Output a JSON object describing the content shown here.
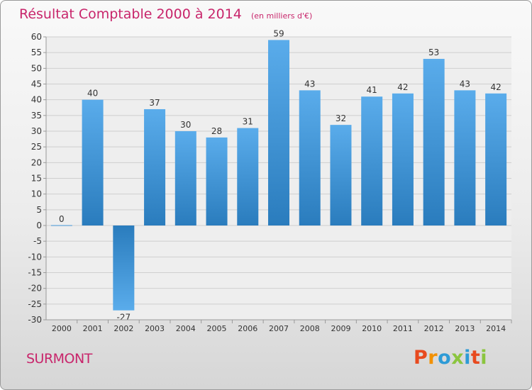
{
  "header": {
    "title": "Résultat Comptable 2000 à 2014",
    "subtitle": "(en milliers d'€)"
  },
  "footer": {
    "commune": "SURMONT",
    "logo": "Proxiti"
  },
  "chart_data": {
    "type": "bar",
    "title": "Résultat Comptable 2000 à 2014",
    "subtitle": "(en milliers d'€)",
    "xlabel": "",
    "ylabel": "",
    "categories": [
      "2000",
      "2001",
      "2002",
      "2003",
      "2004",
      "2005",
      "2006",
      "2007",
      "2008",
      "2009",
      "2010",
      "2011",
      "2012",
      "2013",
      "2014"
    ],
    "values": [
      0,
      40,
      -27,
      37,
      30,
      28,
      31,
      59,
      43,
      32,
      41,
      42,
      53,
      43,
      42
    ],
    "data_labels": [
      "0",
      "40",
      "-27",
      "37",
      "30",
      "28",
      "31",
      "59",
      "43",
      "32",
      "41",
      "42",
      "53",
      "43",
      "42"
    ],
    "ylim": [
      -30,
      60
    ],
    "yticks": [
      60,
      55,
      50,
      45,
      40,
      35,
      30,
      25,
      20,
      15,
      10,
      5,
      0,
      -5,
      -10,
      -15,
      -20,
      -25,
      -30
    ],
    "ytick_labels": [
      "60",
      "55",
      "50",
      "45",
      "40",
      "35",
      "30",
      "25",
      "20",
      "15",
      "10",
      "5",
      "0",
      "-5",
      "-10",
      "-15",
      "-20",
      "-25",
      "-30"
    ],
    "grid": true,
    "bar_color_light": "#5aaceb",
    "bar_color_dark": "#2a7cbd"
  },
  "colors": {
    "title": "#c8256b",
    "logo_letters": [
      "#e84a1f",
      "#f29100",
      "#2e9bd6",
      "#8bc53f",
      "#2e9bd6",
      "#e84a1f",
      "#8bc53f"
    ]
  }
}
